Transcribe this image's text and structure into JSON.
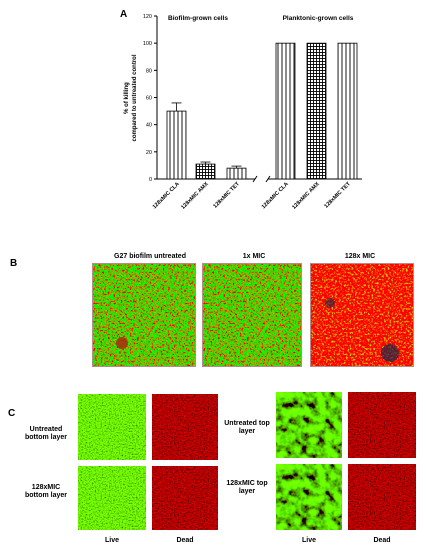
{
  "panel_letters": {
    "a": "A",
    "b": "B",
    "c": "C"
  },
  "chart_data": {
    "type": "bar",
    "group_titles": [
      "Biofilm-grown cells",
      "Planktonic-grown cells"
    ],
    "ylabel_line1": "% of killing",
    "ylabel_line2": "compared to untreated control",
    "ylim": [
      0,
      120
    ],
    "yticks": [
      "0",
      "20",
      "40",
      "60",
      "80",
      "100",
      "120"
    ],
    "categories": [
      "128xMIC CLA",
      "128xMIC AMX",
      "128xMIC TET",
      "128xMIC CLA",
      "128xMIC AMX",
      "128xMIC TET"
    ],
    "values": [
      50,
      11,
      8,
      100,
      100,
      100
    ],
    "errors": [
      6,
      1.5,
      1.5,
      0,
      0,
      0
    ],
    "patterns": [
      "vertical",
      "grid",
      "vertical",
      "vertical",
      "grid",
      "vertical"
    ],
    "grid": false
  },
  "panel_b": {
    "titles": [
      "G27 biofilm untreated",
      "1x MIC",
      "128x MIC"
    ]
  },
  "panel_c": {
    "left_rows": [
      "Untreated bottom layer",
      "128xMIC bottom layer"
    ],
    "right_rows": [
      "Untreated top layer",
      "128xMIC top layer"
    ],
    "col_live": "Live",
    "col_dead": "Dead"
  },
  "colors": {
    "live": "#2fb82a",
    "dead": "#c41a1a",
    "dark": "#1a0a08"
  }
}
